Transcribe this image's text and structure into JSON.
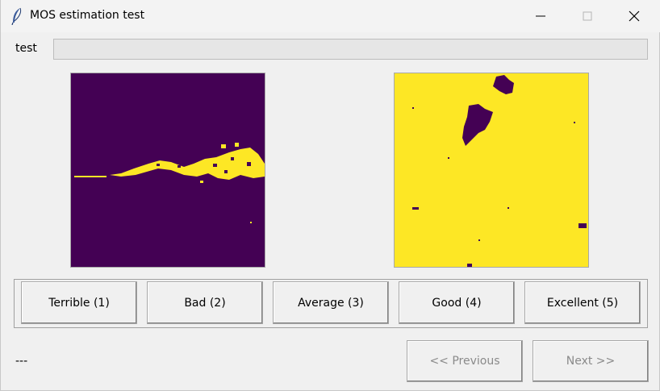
{
  "window": {
    "title": "MOS estimation test"
  },
  "icons": {
    "app": "feather-icon",
    "minimize": "minimize-icon",
    "maximize": "maximize-icon",
    "close": "close-icon"
  },
  "test_label": "test",
  "progress": {
    "value": 0
  },
  "images": {
    "left": {
      "background": "#440154",
      "foreground": "#fde725"
    },
    "right": {
      "background": "#fde725",
      "foreground": "#440154"
    }
  },
  "ratings": [
    "Terrible (1)",
    "Bad (2)",
    "Average (3)",
    "Good (4)",
    "Excellent (5)"
  ],
  "nav": {
    "previous": "<< Previous",
    "next": "Next >>"
  },
  "status": "---"
}
